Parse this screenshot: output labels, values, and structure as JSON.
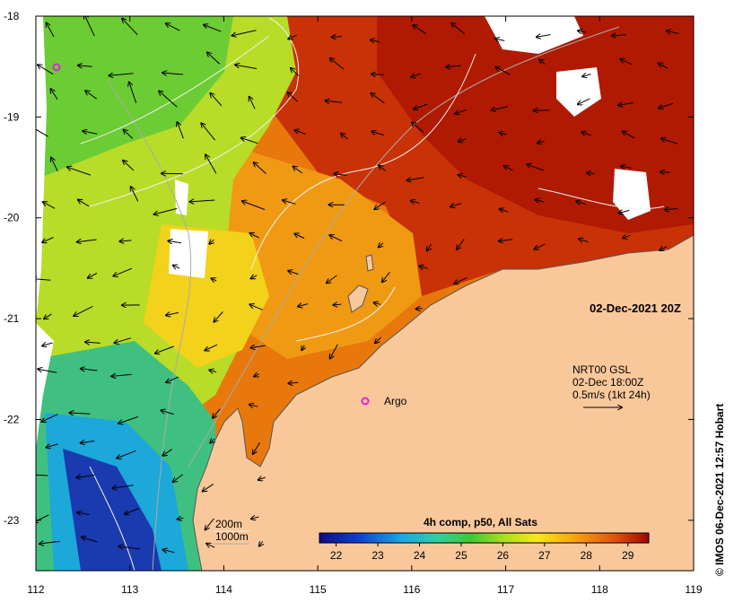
{
  "map": {
    "date_label": "02-Dec-2021 20Z",
    "credit": "© IMOS 06-Dec-2021 12:57 Hobart",
    "argo_label": "Argo",
    "depth_contours": [
      "200m",
      "1000m"
    ],
    "current_legend": [
      "NRT00 GSL",
      "02-Dec 18:00Z",
      "0.5m/s (1kt 24h)"
    ],
    "colorbar_title": "4h comp, p50, All Sats",
    "colorbar_ticks": [
      "22",
      "23",
      "24",
      "25",
      "26",
      "27",
      "28",
      "29"
    ],
    "x_ticks": [
      "112",
      "113",
      "114",
      "115",
      "116",
      "117",
      "118",
      "119"
    ],
    "y_ticks": [
      "-18",
      "-19",
      "-20",
      "-21",
      "-22",
      "-23"
    ],
    "x_range": [
      112,
      119
    ],
    "y_range": [
      -23.5,
      -18
    ],
    "colors": {
      "land": "#f9c89a",
      "cold": "#1b2aa8",
      "cool": "#1fa8d8",
      "mild": "#3fc46a",
      "green": "#8ad32c",
      "yellow": "#f0d418",
      "orange": "#f29a12",
      "warm": "#e0600a",
      "hot": "#b81a02",
      "argo": "#e020e0"
    }
  }
}
